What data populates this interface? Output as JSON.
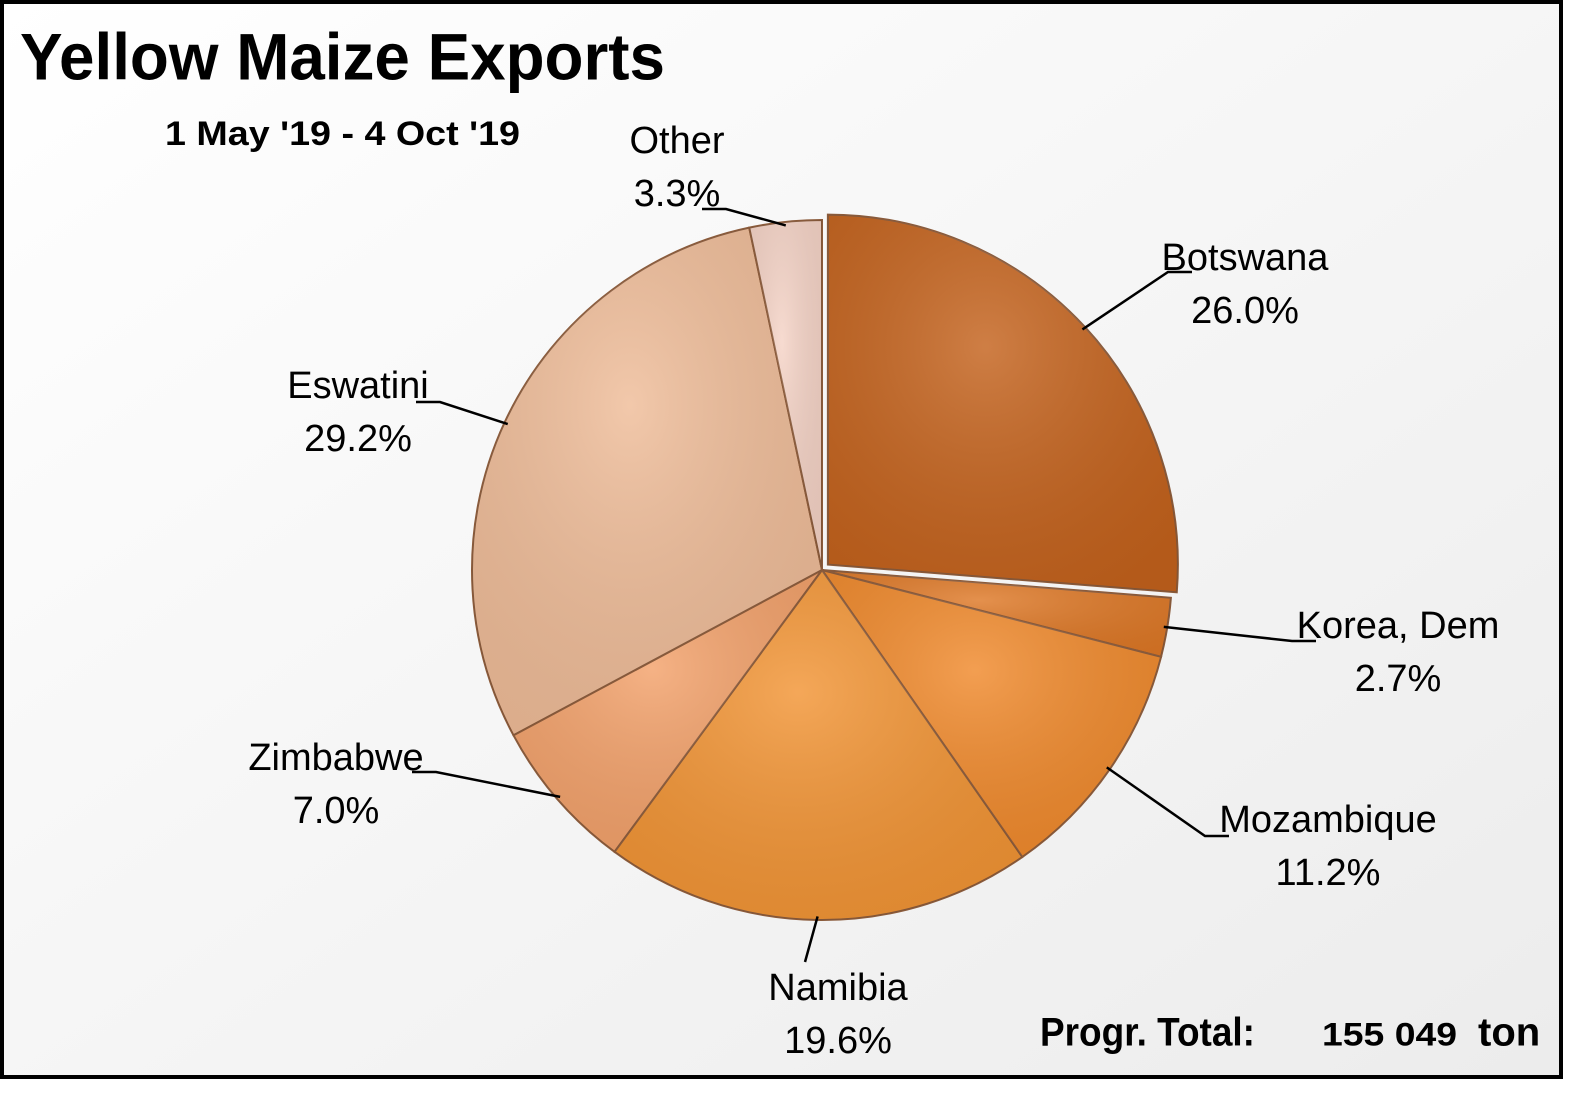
{
  "chart_data": {
    "type": "pie",
    "title": "Yellow Maize Exports",
    "subtitle": "1 May '19 - 4 Oct '19",
    "categories": [
      "Botswana",
      "Korea, Dem",
      "Mozambique",
      "Namibia",
      "Zimbabwe",
      "Eswatini",
      "Other"
    ],
    "values": [
      26.0,
      2.7,
      11.2,
      19.6,
      7.0,
      29.2,
      3.3
    ],
    "value_labels": [
      "26.0%",
      "2.7%",
      "11.2%",
      "19.6%",
      "7.0%",
      "29.2%",
      "3.3%"
    ],
    "colors": [
      "#c4621c",
      "#de7826",
      "#f0892b",
      "#f29434",
      "#f3a16a",
      "#efbc98",
      "#f5d3c6"
    ],
    "total_label": "Progr. Total:",
    "total_value": "155 049",
    "total_unit": "ton"
  }
}
